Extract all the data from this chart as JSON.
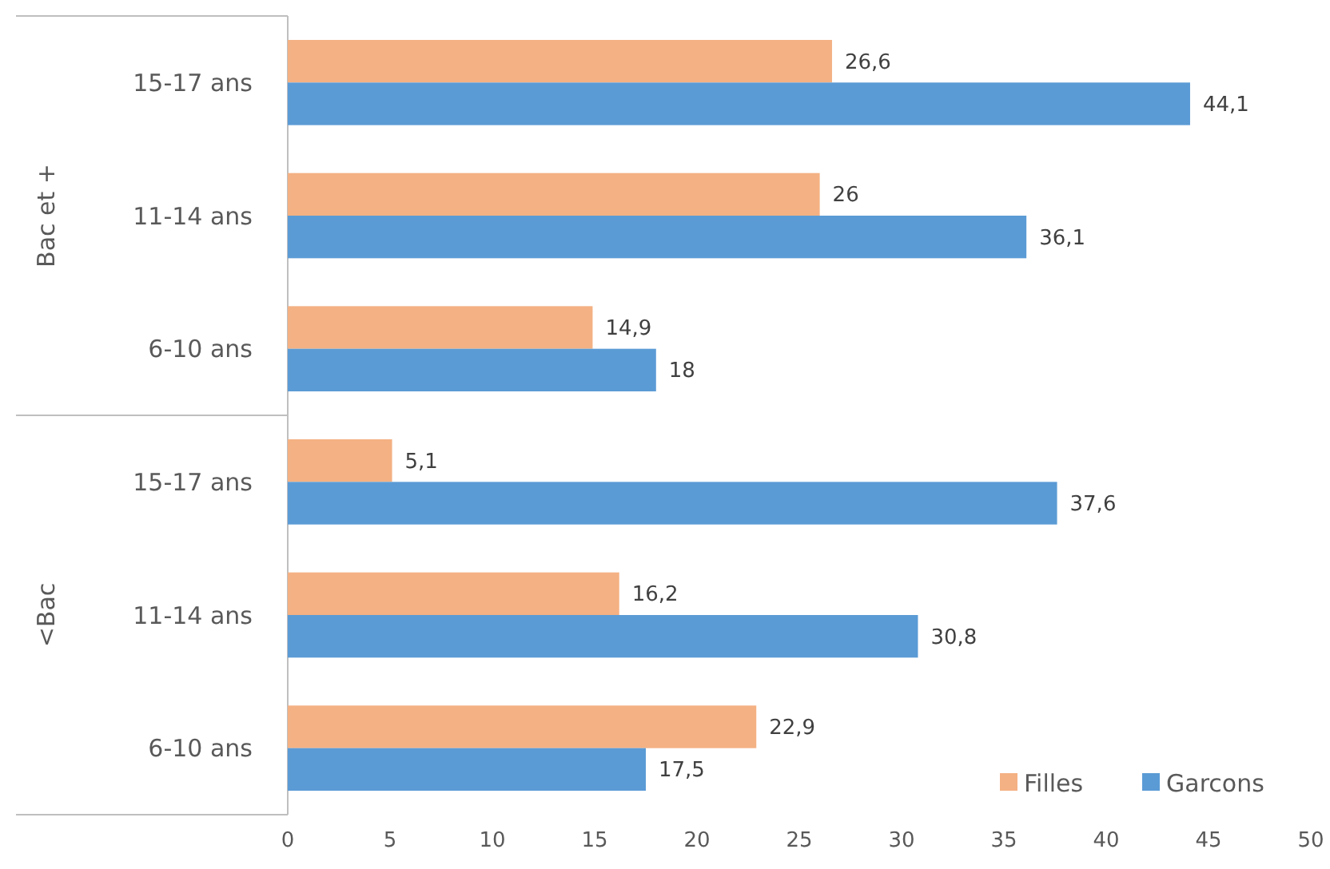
{
  "chart_data": {
    "type": "bar",
    "orientation": "horizontal",
    "categories": [
      "15-17 ans",
      "11-14 ans",
      "6-10 ans",
      "15-17 ans",
      "11-14 ans",
      "6-10 ans"
    ],
    "annotations": [
      "Bac et +",
      "<Bac"
    ],
    "series": [
      {
        "name": "Filles",
        "color": "#f4b183",
        "values": [
          26.6,
          26,
          14.9,
          5.1,
          16.2,
          22.9
        ],
        "value_labels": [
          "26,6",
          "26",
          "14,9",
          "5,1",
          "16,2",
          "22,9"
        ]
      },
      {
        "name": "Garcons",
        "color": "#5b9bd5",
        "values": [
          44.1,
          36.1,
          18,
          37.6,
          30.8,
          17.5
        ],
        "value_labels": [
          "44,1",
          "36,1",
          "18",
          "37,6",
          "30,8",
          "17,5"
        ]
      }
    ],
    "xlim": [
      0,
      50
    ],
    "xticks": [
      0,
      5,
      10,
      15,
      20,
      25,
      30,
      35,
      40,
      45,
      50
    ],
    "grid": false,
    "legend": "bottom right"
  }
}
